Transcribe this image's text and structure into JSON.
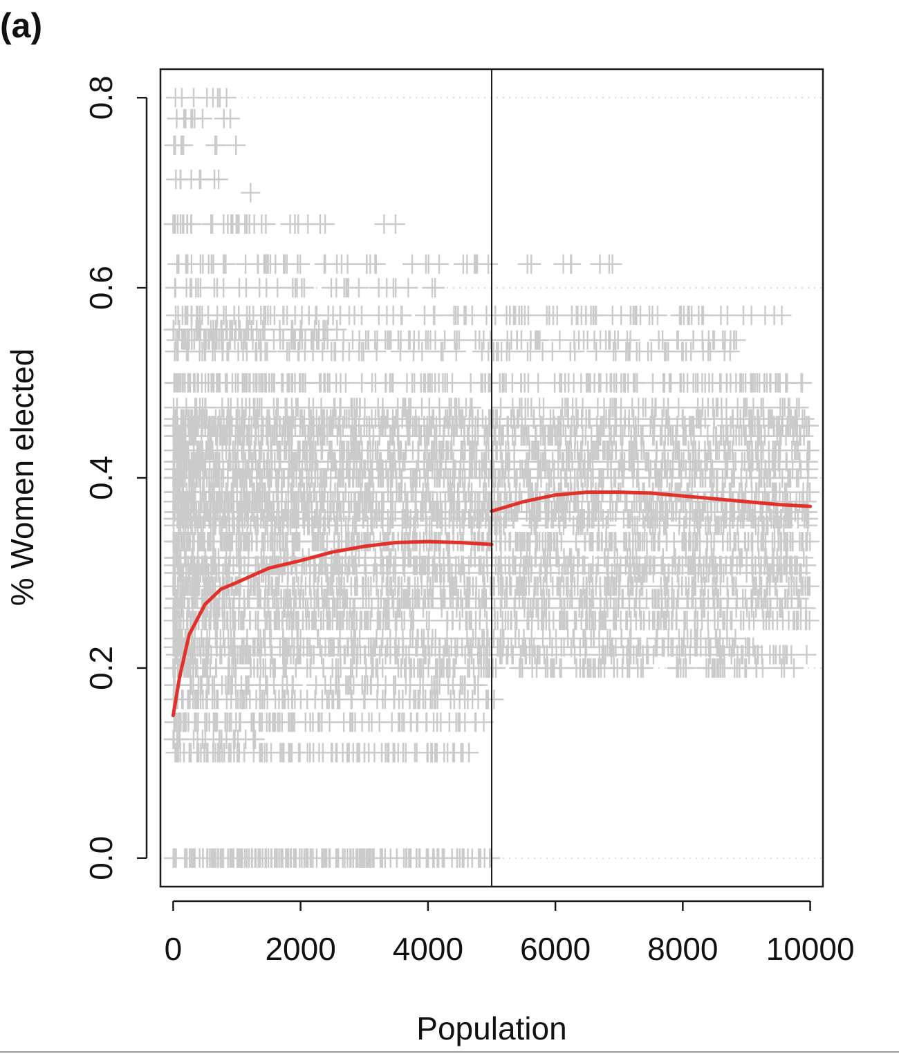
{
  "panel_label": "(a)",
  "chart_data": {
    "type": "scatter",
    "title": "",
    "xlabel": "Population",
    "ylabel": "% Women elected",
    "xlim": [
      -200,
      10200
    ],
    "ylim": [
      -0.03,
      0.83
    ],
    "xticks": [
      "0",
      "2000",
      "4000",
      "6000",
      "8000",
      "10000"
    ],
    "yticks": [
      "0.0",
      "0.2",
      "0.4",
      "0.6",
      "0.8"
    ],
    "grid": "dotted horizontal at y ticks",
    "threshold_x": 5000,
    "colors": {
      "points": "#cbcbcb",
      "fit": "#e0322a",
      "axis": "#1a1a1a",
      "grid": "#d6d6d6"
    },
    "series": [
      {
        "kind": "points",
        "marker": "plus",
        "bands": [
          {
            "y": 0.0,
            "x": [
              0,
              5000
            ],
            "density": 3.0
          },
          {
            "y": 0.111,
            "x": [
              0,
              4700
            ],
            "density": 1.6
          },
          {
            "y": 0.125,
            "x": [
              0,
              1300
            ],
            "density": 1.4
          },
          {
            "y": 0.143,
            "x": [
              0,
              5000
            ],
            "density": 1.4
          },
          {
            "y": 0.167,
            "x": [
              0,
              5200
            ],
            "density": 1.4
          },
          {
            "y": 0.182,
            "x": [
              0,
              4800
            ],
            "density": 1.1
          },
          {
            "y": 0.2,
            "x": [
              0,
              10000
            ],
            "density": 1.3
          },
          {
            "y": 0.214,
            "x": [
              0,
              10000
            ],
            "density": 1.2
          },
          {
            "y": 0.222,
            "x": [
              0,
              9500
            ],
            "density": 1.3
          },
          {
            "y": 0.231,
            "x": [
              0,
              9200
            ],
            "density": 1.0
          },
          {
            "y": 0.25,
            "x": [
              0,
              10000
            ],
            "density": 2.0
          },
          {
            "y": 0.263,
            "x": [
              0,
              10000
            ],
            "density": 1.0
          },
          {
            "y": 0.273,
            "x": [
              0,
              10000
            ],
            "density": 1.6
          },
          {
            "y": 0.286,
            "x": [
              0,
              10000
            ],
            "density": 2.0
          },
          {
            "y": 0.3,
            "x": [
              0,
              10000
            ],
            "density": 1.3
          },
          {
            "y": 0.308,
            "x": [
              0,
              10000
            ],
            "density": 1.6
          },
          {
            "y": 0.316,
            "x": [
              0,
              10000
            ],
            "density": 1.0
          },
          {
            "y": 0.333,
            "x": [
              0,
              10000
            ],
            "density": 2.6
          },
          {
            "y": 0.35,
            "x": [
              0,
              10000
            ],
            "density": 1.2
          },
          {
            "y": 0.357,
            "x": [
              0,
              10000
            ],
            "density": 1.4
          },
          {
            "y": 0.364,
            "x": [
              0,
              10000
            ],
            "density": 1.8
          },
          {
            "y": 0.375,
            "x": [
              0,
              10000
            ],
            "density": 1.8
          },
          {
            "y": 0.385,
            "x": [
              0,
              10000
            ],
            "density": 1.5
          },
          {
            "y": 0.4,
            "x": [
              0,
              10000
            ],
            "density": 2.0
          },
          {
            "y": 0.409,
            "x": [
              0,
              10000
            ],
            "density": 1.1
          },
          {
            "y": 0.417,
            "x": [
              0,
              10000
            ],
            "density": 1.4
          },
          {
            "y": 0.429,
            "x": [
              0,
              10000
            ],
            "density": 2.0
          },
          {
            "y": 0.444,
            "x": [
              0,
              10000
            ],
            "density": 1.8
          },
          {
            "y": 0.455,
            "x": [
              0,
              10000
            ],
            "density": 1.5
          },
          {
            "y": 0.462,
            "x": [
              0,
              10000
            ],
            "density": 1.3
          },
          {
            "y": 0.474,
            "x": [
              0,
              10000
            ],
            "density": 0.9
          },
          {
            "y": 0.5,
            "x": [
              0,
              10000
            ],
            "density": 1.6
          },
          {
            "y": 0.533,
            "x": [
              0,
              8800
            ],
            "density": 0.7
          },
          {
            "y": 0.545,
            "x": [
              0,
              9000
            ],
            "density": 1.0
          },
          {
            "y": 0.556,
            "x": [
              0,
              2600
            ],
            "density": 1.2
          },
          {
            "y": 0.571,
            "x": [
              0,
              9700
            ],
            "density": 0.8
          },
          {
            "y": 0.6,
            "x": [
              0,
              4200
            ],
            "density": 0.6
          },
          {
            "y": 0.625,
            "x": [
              0,
              7000
            ],
            "density": 0.6
          },
          {
            "y": 0.667,
            "x": [
              0,
              3800
            ],
            "density": 0.7
          },
          {
            "y": 0.7,
            "x": [
              1000,
              1400
            ],
            "density": 0.2
          },
          {
            "y": 0.714,
            "x": [
              0,
              800
            ],
            "density": 0.8
          },
          {
            "y": 0.75,
            "x": [
              0,
              1000
            ],
            "density": 0.6
          },
          {
            "y": 0.778,
            "x": [
              0,
              1400
            ],
            "density": 0.5
          },
          {
            "y": 0.8,
            "x": [
              0,
              900
            ],
            "density": 0.6
          }
        ]
      },
      {
        "kind": "fit",
        "segment": "below threshold",
        "x": [
          0,
          100,
          250,
          500,
          750,
          1000,
          1500,
          2000,
          2500,
          3000,
          3500,
          4000,
          4500,
          5000
        ],
        "y": [
          0.15,
          0.19,
          0.235,
          0.267,
          0.283,
          0.29,
          0.305,
          0.313,
          0.322,
          0.328,
          0.332,
          0.333,
          0.332,
          0.33
        ]
      },
      {
        "kind": "fit",
        "segment": "above threshold",
        "x": [
          5000,
          5500,
          6000,
          6500,
          7000,
          7500,
          8000,
          8500,
          9000,
          9500,
          10000
        ],
        "y": [
          0.365,
          0.375,
          0.382,
          0.385,
          0.385,
          0.384,
          0.381,
          0.378,
          0.375,
          0.372,
          0.37
        ]
      }
    ]
  }
}
